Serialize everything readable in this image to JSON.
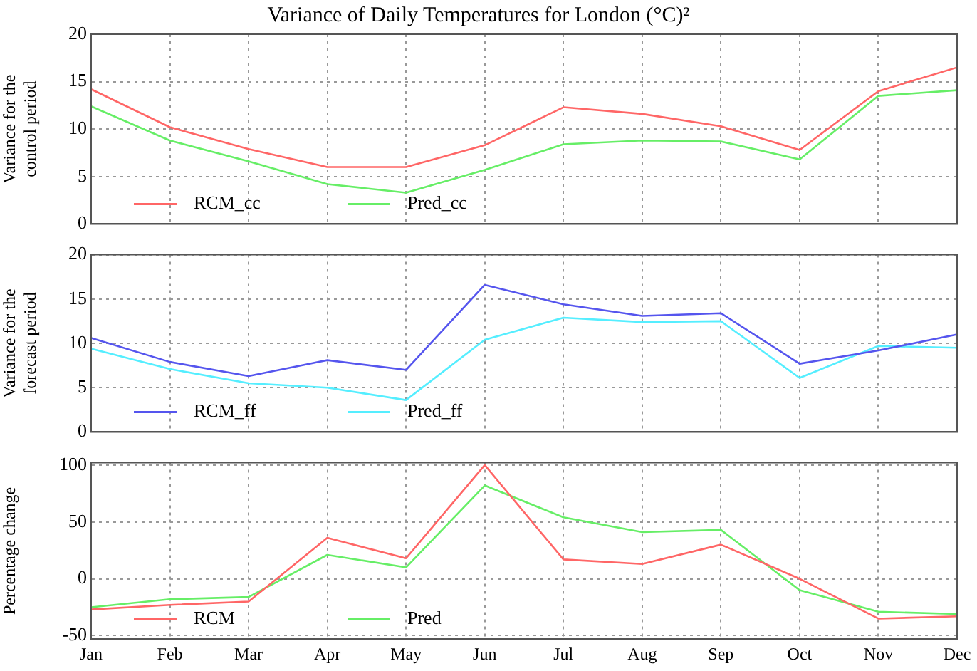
{
  "chart_data": [
    {
      "type": "line",
      "title": "Variance of Daily Temperatures for London (°C)²",
      "ylabel": "Variance for the control period",
      "categories": [
        null,
        null,
        null,
        null,
        null,
        null,
        null,
        null,
        null,
        null,
        null,
        null
      ],
      "ylim": [
        0,
        20
      ],
      "yticks": [
        0,
        5,
        10,
        15,
        20
      ],
      "grid": true,
      "legend": "bottom left",
      "tick_labels": "y",
      "series": [
        {
          "name": "RCM_cc",
          "color": "#ff6666",
          "values": [
            14.2,
            10.2,
            7.9,
            6.0,
            6.0,
            8.3,
            12.3,
            11.6,
            10.3,
            7.8,
            14.0,
            16.5
          ]
        },
        {
          "name": "Pred_cc",
          "color": "#66ee66",
          "values": [
            12.4,
            8.8,
            6.6,
            4.2,
            3.3,
            5.7,
            8.4,
            8.8,
            8.7,
            6.8,
            13.5,
            14.1
          ]
        }
      ]
    },
    {
      "type": "line",
      "ylabel": "Variance for the forecast period",
      "categories": [
        null,
        null,
        null,
        null,
        null,
        null,
        null,
        null,
        null,
        null,
        null,
        null
      ],
      "ylim": [
        0,
        20
      ],
      "yticks": [
        0,
        5,
        10,
        15,
        20
      ],
      "grid": true,
      "legend": "bottom left",
      "tick_labels": "y",
      "series": [
        {
          "name": "RCM_ff",
          "color": "#5555ee",
          "values": [
            10.6,
            7.9,
            6.3,
            8.1,
            7.0,
            16.6,
            14.4,
            13.1,
            13.4,
            7.7,
            9.2,
            11.0
          ]
        },
        {
          "name": "Pred_ff",
          "color": "#55eeff",
          "values": [
            9.4,
            7.1,
            5.5,
            5.0,
            3.6,
            10.4,
            12.9,
            12.4,
            12.5,
            6.1,
            9.7,
            9.5
          ]
        }
      ]
    },
    {
      "type": "line",
      "ylabel": "Percentage change",
      "categories": [
        "Jan",
        "Feb",
        "Mar",
        "Apr",
        "May",
        "Jun",
        "Jul",
        "Aug",
        "Sep",
        "Oct",
        "Nov",
        "Dec"
      ],
      "ylim": [
        -53,
        102
      ],
      "yticks": [
        -50,
        0,
        50,
        100
      ],
      "grid": true,
      "legend": "bottom left",
      "series": [
        {
          "name": "RCM",
          "color": "#ff6666",
          "values": [
            -27,
            -23,
            -20,
            36,
            18,
            100,
            17,
            13,
            30,
            0,
            -35,
            -33
          ]
        },
        {
          "name": "Pred",
          "color": "#66ee66",
          "values": [
            -25,
            -18,
            -16,
            21,
            10,
            82,
            54,
            41,
            43,
            -10,
            -29,
            -31
          ]
        }
      ]
    }
  ]
}
